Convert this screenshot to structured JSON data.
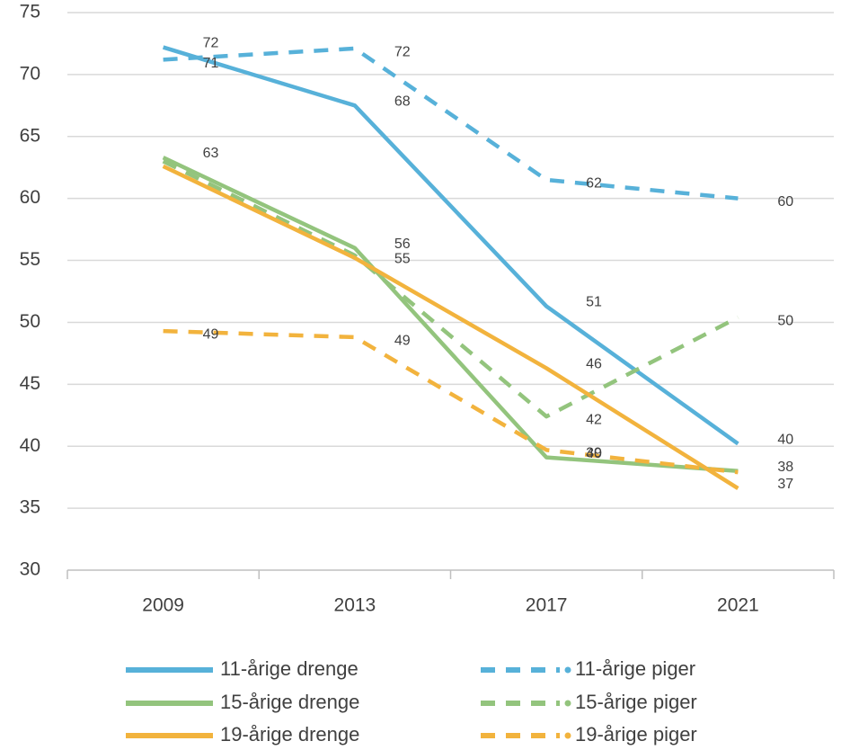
{
  "chart_data": {
    "type": "line",
    "categories": [
      "2009",
      "2013",
      "2017",
      "2021"
    ],
    "ylim": [
      30,
      75
    ],
    "yticks": [
      30,
      35,
      40,
      45,
      50,
      55,
      60,
      65,
      70,
      75
    ],
    "grid": true,
    "legend": "bottom",
    "series": [
      {
        "name": "11-årige drenge",
        "color": "#57b1d9",
        "dashed": false,
        "values": [
          72.2,
          67.5,
          51.3,
          40.2
        ],
        "value_labels": [
          "72",
          "68",
          "51",
          "40"
        ]
      },
      {
        "name": "11-årige piger",
        "color": "#57b1d9",
        "dashed": true,
        "values": [
          71.2,
          72.1,
          61.5,
          60.0
        ],
        "value_labels": [
          "71",
          "72",
          "62",
          "60"
        ]
      },
      {
        "name": "15-årige drenge",
        "color": "#93c47d",
        "dashed": false,
        "values": [
          63.3,
          56.0,
          39.1,
          38.0
        ],
        "value_labels": [
          "63",
          "56",
          "39",
          "38"
        ]
      },
      {
        "name": "15-årige piger",
        "color": "#93c47d",
        "dashed": true,
        "values": [
          63.0,
          55.4,
          42.4,
          50.4
        ],
        "value_labels": [
          null,
          "55",
          "42",
          "50"
        ]
      },
      {
        "name": "19-årige drenge",
        "color": "#f2b33d",
        "dashed": false,
        "values": [
          62.6,
          55.2,
          46.3,
          36.6
        ],
        "value_labels": [
          null,
          null,
          "46",
          "37"
        ]
      },
      {
        "name": "19-årige piger",
        "color": "#f2b33d",
        "dashed": true,
        "values": [
          49.3,
          48.8,
          39.7,
          37.9
        ],
        "value_labels": [
          "49",
          "49",
          "40",
          null
        ]
      }
    ]
  }
}
